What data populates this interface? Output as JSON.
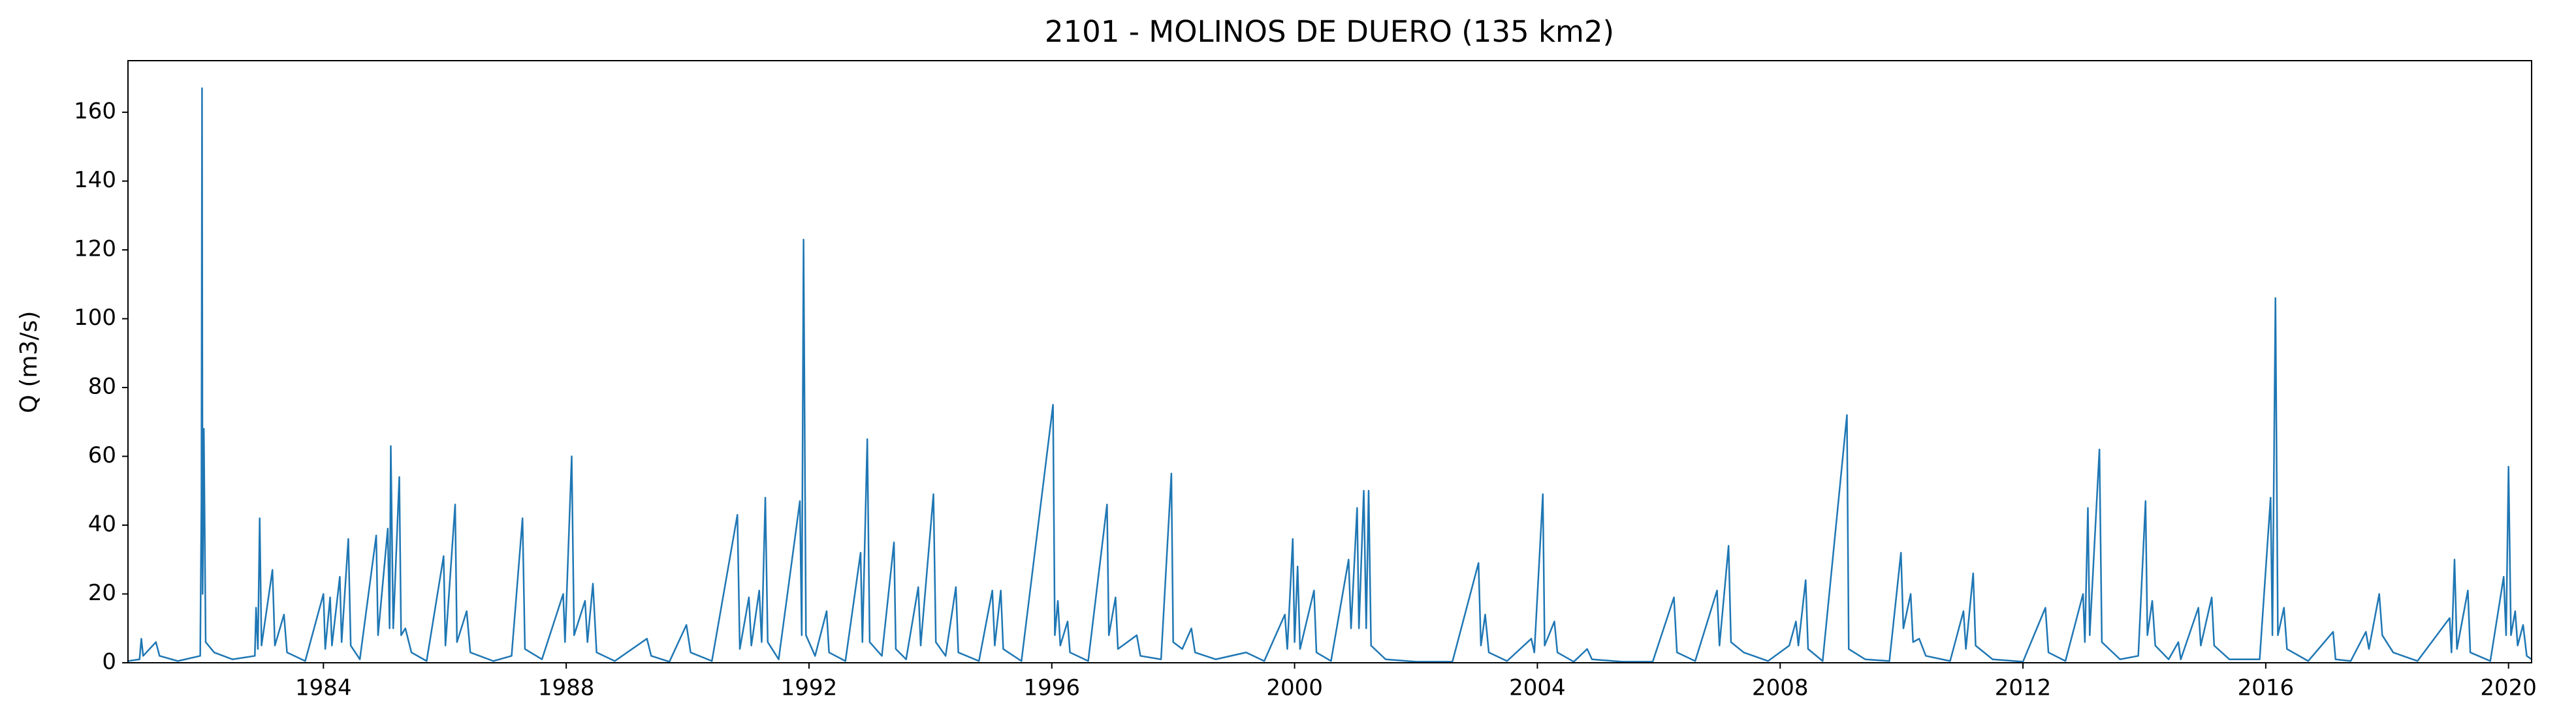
{
  "chart_data": {
    "type": "line",
    "title": "2101 - MOLINOS DE DUERO (135 km2)",
    "y_label": "Q (m3/s)",
    "color": "#1f77b4",
    "xlim": [
      1980.78,
      2020.38
    ],
    "xticks": [
      1984,
      1988,
      1992,
      1996,
      2000,
      2004,
      2008,
      2012,
      2016,
      2020
    ],
    "ylim": [
      0,
      175
    ],
    "yticks": [
      0,
      20,
      40,
      60,
      80,
      100,
      120,
      140,
      160
    ],
    "x": [
      1980.78,
      1980.97,
      1981.0,
      1981.03,
      1981.24,
      1981.3,
      1981.6,
      1981.97,
      1981.99,
      1982.0,
      1982.01,
      1982.03,
      1982.06,
      1982.2,
      1982.5,
      1982.87,
      1982.89,
      1982.92,
      1982.95,
      1982.98,
      1983.16,
      1983.2,
      1983.35,
      1983.4,
      1983.7,
      1984.0,
      1984.03,
      1984.11,
      1984.14,
      1984.27,
      1984.3,
      1984.41,
      1984.45,
      1984.6,
      1984.87,
      1984.9,
      1985.06,
      1985.09,
      1985.11,
      1985.15,
      1985.25,
      1985.28,
      1985.35,
      1985.45,
      1985.7,
      1985.98,
      1986.01,
      1986.17,
      1986.2,
      1986.36,
      1986.42,
      1986.8,
      1987.1,
      1987.28,
      1987.32,
      1987.6,
      1987.95,
      1987.98,
      1988.09,
      1988.13,
      1988.31,
      1988.35,
      1988.44,
      1988.5,
      1988.8,
      1989.33,
      1989.4,
      1989.7,
      1989.98,
      1990.05,
      1990.4,
      1990.82,
      1990.86,
      1991.01,
      1991.05,
      1991.18,
      1991.22,
      1991.28,
      1991.32,
      1991.5,
      1991.85,
      1991.88,
      1991.91,
      1991.95,
      1992.1,
      1992.29,
      1992.33,
      1992.6,
      1992.85,
      1992.88,
      1992.96,
      1993.0,
      1993.2,
      1993.4,
      1993.43,
      1993.6,
      1993.8,
      1993.84,
      1994.05,
      1994.09,
      1994.25,
      1994.42,
      1994.46,
      1994.8,
      1995.02,
      1995.06,
      1995.16,
      1995.2,
      1995.5,
      1996.02,
      1996.05,
      1996.1,
      1996.14,
      1996.26,
      1996.3,
      1996.6,
      1996.91,
      1996.94,
      1997.05,
      1997.09,
      1997.4,
      1997.46,
      1997.8,
      1997.97,
      1998.0,
      1998.15,
      1998.3,
      1998.36,
      1998.7,
      1999.2,
      1999.5,
      1999.84,
      1999.88,
      1999.97,
      2000.0,
      2000.05,
      2000.09,
      2000.32,
      2000.36,
      2000.6,
      2000.89,
      2000.93,
      2001.03,
      2001.06,
      2001.14,
      2001.18,
      2001.22,
      2001.26,
      2001.5,
      2002.0,
      2002.6,
      2003.03,
      2003.07,
      2003.14,
      2003.2,
      2003.5,
      2003.9,
      2003.95,
      2004.09,
      2004.12,
      2004.28,
      2004.33,
      2004.6,
      2004.82,
      2004.9,
      2005.4,
      2005.9,
      2006.25,
      2006.3,
      2006.6,
      2006.96,
      2007.0,
      2007.15,
      2007.19,
      2007.4,
      2007.8,
      2008.15,
      2008.26,
      2008.3,
      2008.42,
      2008.46,
      2008.7,
      2009.1,
      2009.13,
      2009.4,
      2009.8,
      2009.99,
      2010.03,
      2010.15,
      2010.19,
      2010.29,
      2010.4,
      2010.8,
      2011.02,
      2011.06,
      2011.18,
      2011.22,
      2011.5,
      2012.0,
      2012.37,
      2012.42,
      2012.7,
      2012.99,
      2013.02,
      2013.07,
      2013.1,
      2013.26,
      2013.3,
      2013.6,
      2013.9,
      2014.02,
      2014.05,
      2014.13,
      2014.18,
      2014.4,
      2014.56,
      2014.6,
      2014.89,
      2014.93,
      2015.11,
      2015.15,
      2015.4,
      2015.9,
      2016.08,
      2016.11,
      2016.16,
      2016.2,
      2016.3,
      2016.35,
      2016.7,
      2017.11,
      2017.15,
      2017.4,
      2017.65,
      2017.7,
      2017.87,
      2017.92,
      2018.1,
      2018.5,
      2019.03,
      2019.06,
      2019.11,
      2019.15,
      2019.33,
      2019.37,
      2019.7,
      2019.92,
      2019.96,
      2020.0,
      2020.04,
      2020.11,
      2020.15,
      2020.24,
      2020.3,
      2020.38
    ],
    "values": [
      0.5,
      1,
      7,
      2,
      6,
      2,
      0.5,
      2,
      47,
      167,
      20,
      68,
      6,
      3,
      1,
      2,
      16,
      4,
      42,
      5,
      27,
      5,
      14,
      3,
      0.5,
      20,
      4,
      19,
      5,
      25,
      6,
      36,
      5,
      1,
      37,
      8,
      39,
      10,
      63,
      10,
      54,
      8,
      10,
      3,
      0.5,
      31,
      5,
      46,
      6,
      15,
      3,
      0.5,
      2,
      42,
      4,
      1,
      20,
      6,
      60,
      8,
      18,
      6,
      23,
      3,
      0.5,
      7,
      2,
      0.3,
      11,
      3,
      0.5,
      43,
      4,
      19,
      5,
      21,
      6,
      48,
      6,
      1,
      47,
      8,
      123,
      8,
      2,
      15,
      3,
      0.5,
      32,
      6,
      65,
      6,
      2,
      35,
      4,
      1,
      22,
      5,
      49,
      6,
      2,
      22,
      3,
      0.5,
      21,
      5,
      21,
      4,
      0.5,
      75,
      8,
      18,
      5,
      12,
      3,
      0.5,
      46,
      8,
      19,
      4,
      8,
      2,
      1,
      55,
      6,
      4,
      10,
      3,
      1,
      3,
      0.5,
      14,
      4,
      36,
      6,
      28,
      4,
      21,
      3,
      0.5,
      30,
      10,
      45,
      10,
      50,
      10,
      50,
      5,
      1,
      0.3,
      0.3,
      29,
      5,
      14,
      3,
      0.5,
      7,
      3,
      49,
      5,
      12,
      3,
      0.3,
      4,
      1,
      0.3,
      0.3,
      19,
      3,
      0.5,
      21,
      5,
      34,
      6,
      3,
      0.5,
      5,
      12,
      5,
      24,
      4,
      0.5,
      72,
      4,
      1,
      0.5,
      32,
      10,
      20,
      6,
      7,
      2,
      0.5,
      15,
      4,
      26,
      5,
      1,
      0.3,
      16,
      3,
      0.5,
      20,
      6,
      45,
      8,
      62,
      6,
      1,
      2,
      47,
      8,
      18,
      5,
      1,
      6,
      1,
      16,
      5,
      19,
      5,
      1,
      1,
      48,
      8,
      106,
      8,
      16,
      4,
      0.5,
      9,
      1,
      0.5,
      9,
      4,
      20,
      8,
      3,
      0.5,
      13,
      3,
      30,
      4,
      21,
      3,
      0.5,
      25,
      8,
      57,
      8,
      15,
      5,
      11,
      2,
      1
    ]
  }
}
